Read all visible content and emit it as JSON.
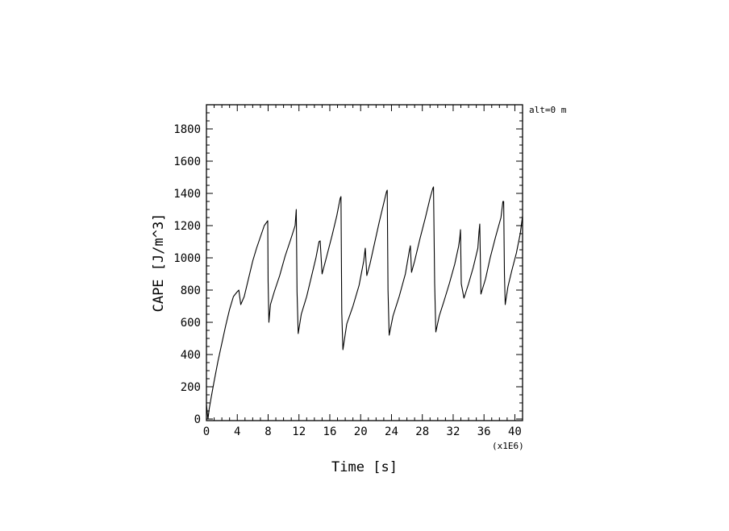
{
  "chart_data": {
    "type": "line",
    "xlabel": "Time [s]",
    "ylabel": "CAPE [J/m^3]",
    "x_multiplier_label": "(x1E6)",
    "annotation": "alt=0 m",
    "xlim": [
      0,
      41
    ],
    "ylim": [
      -10,
      1950
    ],
    "x_ticks": [
      0,
      4,
      8,
      12,
      16,
      20,
      24,
      28,
      32,
      36,
      40
    ],
    "y_ticks": [
      0,
      200,
      400,
      600,
      800,
      1000,
      1200,
      1400,
      1600,
      1800
    ],
    "grid": false,
    "series": [
      {
        "color": "#000000",
        "x": [
          0.0,
          0.2,
          0.35,
          0.6,
          1.0,
          1.5,
          2.0,
          2.5,
          3.0,
          3.5,
          4.0,
          4.2,
          4.45,
          4.9,
          5.5,
          6.0,
          6.5,
          7.0,
          7.5,
          7.95,
          8.0,
          8.1,
          8.3,
          8.8,
          9.5,
          10.2,
          10.9,
          11.5,
          11.65,
          11.75,
          11.9,
          12.3,
          13.0,
          13.6,
          14.2,
          14.6,
          14.75,
          15.0,
          15.6,
          16.3,
          16.9,
          17.35,
          17.45,
          17.55,
          17.7,
          18.2,
          19.0,
          19.8,
          20.4,
          20.6,
          20.8,
          21.2,
          21.8,
          22.4,
          23.0,
          23.35,
          23.45,
          23.55,
          23.7,
          24.2,
          25.0,
          25.8,
          26.3,
          26.45,
          26.6,
          27.0,
          27.7,
          28.4,
          29.0,
          29.35,
          29.45,
          29.6,
          29.75,
          30.2,
          30.8,
          31.5,
          32.2,
          32.7,
          32.85,
          32.95,
          33.05,
          33.4,
          34.0,
          34.6,
          35.2,
          35.35,
          35.45,
          35.6,
          36.2,
          36.8,
          37.5,
          38.2,
          38.45,
          38.55,
          38.65,
          38.75,
          39.1,
          39.6,
          40.2,
          40.7,
          41.0
        ],
        "y": [
          90,
          0,
          60,
          130,
          235,
          360,
          470,
          580,
          680,
          760,
          790,
          800,
          710,
          760,
          880,
          980,
          1060,
          1130,
          1200,
          1230,
          850,
          600,
          710,
          790,
          890,
          1010,
          1110,
          1200,
          1300,
          790,
          530,
          650,
          760,
          880,
          1000,
          1100,
          1105,
          900,
          1010,
          1140,
          1260,
          1370,
          1380,
          660,
          430,
          590,
          700,
          830,
          980,
          1060,
          890,
          960,
          1090,
          1220,
          1340,
          1410,
          1420,
          800,
          520,
          640,
          760,
          900,
          1040,
          1075,
          910,
          980,
          1120,
          1250,
          1370,
          1430,
          1440,
          840,
          540,
          640,
          730,
          840,
          960,
          1070,
          1120,
          1175,
          840,
          750,
          840,
          940,
          1060,
          1160,
          1210,
          775,
          870,
          1000,
          1130,
          1250,
          1350,
          1350,
          900,
          710,
          820,
          920,
          1030,
          1150,
          1260
        ]
      }
    ]
  }
}
